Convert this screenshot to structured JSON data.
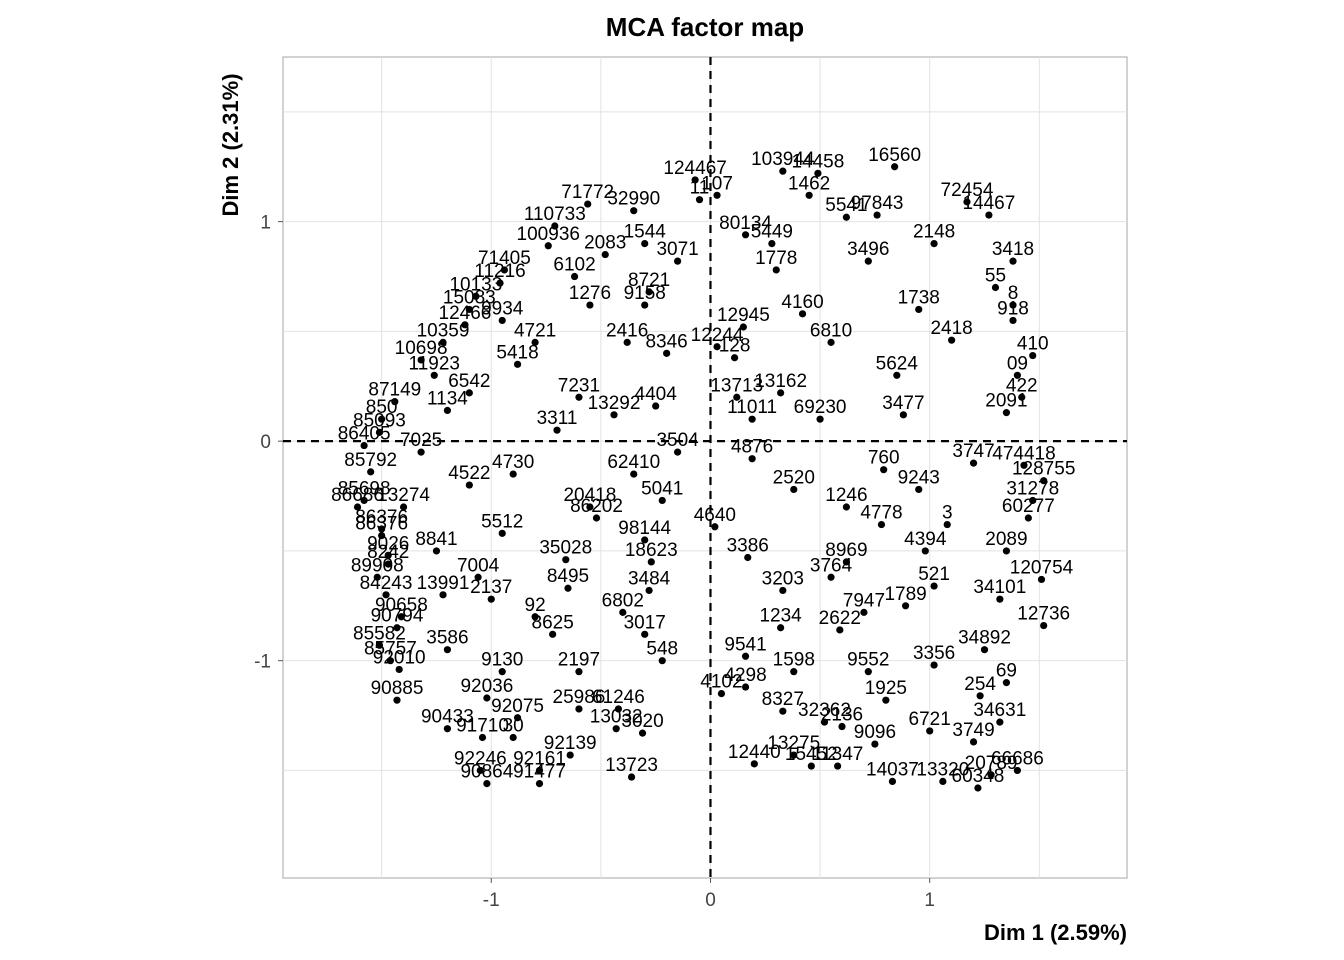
{
  "chart_data": {
    "type": "scatter",
    "title": "MCA factor map",
    "xlabel": "Dim 1 (2.59%)",
    "ylabel": "Dim 2 (2.31%)",
    "xlim": [
      -1.95,
      1.9
    ],
    "ylim": [
      -1.99,
      1.75
    ],
    "x_ticks": [
      -1,
      0,
      1
    ],
    "y_ticks": [
      -1,
      0,
      1
    ],
    "x_tick_labels": [
      "-1",
      "0",
      "1"
    ],
    "y_tick_labels": [
      "-1",
      "0",
      "1"
    ],
    "grid": true,
    "reference_lines": {
      "x": 0,
      "y": 0,
      "style": "dashed"
    },
    "point_color": "#000000",
    "points": [
      {
        "x": -0.07,
        "y": 1.19,
        "label": "124467"
      },
      {
        "x": -0.56,
        "y": 1.08,
        "label": "71772"
      },
      {
        "x": -0.35,
        "y": 1.05,
        "label": "32990"
      },
      {
        "x": 0.33,
        "y": 1.23,
        "label": "103944"
      },
      {
        "x": 0.49,
        "y": 1.22,
        "label": "14458"
      },
      {
        "x": 0.84,
        "y": 1.25,
        "label": "16560"
      },
      {
        "x": 0.03,
        "y": 1.12,
        "label": "107"
      },
      {
        "x": 1.17,
        "y": 1.09,
        "label": "72454"
      },
      {
        "x": 0.76,
        "y": 1.03,
        "label": "97843"
      },
      {
        "x": 1.27,
        "y": 1.03,
        "label": "14467"
      },
      {
        "x": -0.71,
        "y": 0.98,
        "label": "110733"
      },
      {
        "x": -0.74,
        "y": 0.89,
        "label": "100936"
      },
      {
        "x": 0.16,
        "y": 0.94,
        "label": "80134"
      },
      {
        "x": -0.94,
        "y": 0.78,
        "label": "71405"
      },
      {
        "x": -0.96,
        "y": 0.72,
        "label": "11216"
      },
      {
        "x": -1.07,
        "y": 0.66,
        "label": "10133"
      },
      {
        "x": -1.1,
        "y": 0.6,
        "label": "15083"
      },
      {
        "x": 1.38,
        "y": 0.82,
        "label": "3418"
      },
      {
        "x": 1.3,
        "y": 0.7,
        "label": "55"
      },
      {
        "x": 1.38,
        "y": 0.62,
        "label": "8"
      },
      {
        "x": 1.38,
        "y": 0.55,
        "label": "918"
      },
      {
        "x": -1.12,
        "y": 0.53,
        "label": "12466"
      },
      {
        "x": -1.22,
        "y": 0.45,
        "label": "10359"
      },
      {
        "x": -1.32,
        "y": 0.37,
        "label": "10698"
      },
      {
        "x": -1.26,
        "y": 0.3,
        "label": "11923"
      },
      {
        "x": -1.44,
        "y": 0.18,
        "label": "87149"
      },
      {
        "x": -1.5,
        "y": 0.1,
        "label": "850"
      },
      {
        "x": -1.51,
        "y": 0.04,
        "label": "85093"
      },
      {
        "x": 0.03,
        "y": 0.43,
        "label": "12244"
      },
      {
        "x": 0.11,
        "y": 0.38,
        "label": "128"
      },
      {
        "x": 1.47,
        "y": 0.39,
        "label": "410"
      },
      {
        "x": 1.4,
        "y": 0.3,
        "label": "09"
      },
      {
        "x": 1.42,
        "y": 0.2,
        "label": "422"
      },
      {
        "x": 1.35,
        "y": 0.13,
        "label": "2091"
      },
      {
        "x": 0.12,
        "y": 0.2,
        "label": "13713"
      },
      {
        "x": 0.19,
        "y": 0.1,
        "label": "11011"
      },
      {
        "x": 0.5,
        "y": 0.1,
        "label": "69230"
      },
      {
        "x": -1.58,
        "y": -0.02,
        "label": "86405"
      },
      {
        "x": -1.55,
        "y": -0.14,
        "label": "85792"
      },
      {
        "x": -1.58,
        "y": -0.27,
        "label": "85698"
      },
      {
        "x": -1.61,
        "y": -0.3,
        "label": "86686"
      },
      {
        "x": -1.4,
        "y": -0.3,
        "label": "13274"
      },
      {
        "x": -1.5,
        "y": -0.4,
        "label": "86376"
      },
      {
        "x": -1.5,
        "y": -0.43,
        "label": "86376"
      },
      {
        "x": -1.47,
        "y": -0.52,
        "label": "9026"
      },
      {
        "x": -1.47,
        "y": -0.56,
        "label": "8242"
      },
      {
        "x": -1.52,
        "y": -0.62,
        "label": "89908"
      },
      {
        "x": -1.48,
        "y": -0.7,
        "label": "84243"
      },
      {
        "x": -1.22,
        "y": -0.7,
        "label": "13991"
      },
      {
        "x": -1.41,
        "y": -0.8,
        "label": "90658"
      },
      {
        "x": -1.43,
        "y": -0.85,
        "label": "90794"
      },
      {
        "x": -1.51,
        "y": -0.93,
        "label": "85582"
      },
      {
        "x": -1.46,
        "y": -1.0,
        "label": "85757"
      },
      {
        "x": -1.42,
        "y": -1.04,
        "label": "92010"
      },
      {
        "x": -1.43,
        "y": -1.18,
        "label": "90885"
      },
      {
        "x": -1.02,
        "y": -1.17,
        "label": "92036"
      },
      {
        "x": -1.2,
        "y": -1.31,
        "label": "90433"
      },
      {
        "x": -1.04,
        "y": -1.35,
        "label": "91710"
      },
      {
        "x": -0.9,
        "y": -1.35,
        "label": "30"
      },
      {
        "x": -0.88,
        "y": -1.26,
        "label": "92075"
      },
      {
        "x": -1.05,
        "y": -1.5,
        "label": "92246"
      },
      {
        "x": -0.78,
        "y": -1.5,
        "label": "92161"
      },
      {
        "x": -0.64,
        "y": -1.43,
        "label": "92139"
      },
      {
        "x": -1.02,
        "y": -1.56,
        "label": "90864"
      },
      {
        "x": -0.78,
        "y": -1.56,
        "label": "91477"
      },
      {
        "x": -0.6,
        "y": -1.22,
        "label": "25986"
      },
      {
        "x": -0.42,
        "y": -1.22,
        "label": "61246"
      },
      {
        "x": -0.43,
        "y": -1.31,
        "label": "13032"
      },
      {
        "x": -0.31,
        "y": -1.33,
        "label": "3020"
      },
      {
        "x": -0.36,
        "y": -1.53,
        "label": "13723"
      },
      {
        "x": -0.27,
        "y": -0.55,
        "label": "18623"
      },
      {
        "x": 0.17,
        "y": -0.53,
        "label": "3386"
      },
      {
        "x": 0.02,
        "y": -0.39,
        "label": "4640"
      },
      {
        "x": -0.3,
        "y": -0.45,
        "label": "98144"
      },
      {
        "x": 0.19,
        "y": -0.08,
        "label": "4876"
      },
      {
        "x": 0.79,
        "y": -0.13,
        "label": "760"
      },
      {
        "x": 1.43,
        "y": -0.11,
        "label": "474418"
      },
      {
        "x": 1.52,
        "y": -0.18,
        "label": "128755"
      },
      {
        "x": 1.47,
        "y": -0.27,
        "label": "31278"
      },
      {
        "x": 1.45,
        "y": -0.35,
        "label": "60277"
      },
      {
        "x": 1.08,
        "y": -0.38,
        "label": "3"
      },
      {
        "x": 0.78,
        "y": -0.38,
        "label": "4778"
      },
      {
        "x": 1.35,
        "y": -0.5,
        "label": "2089"
      },
      {
        "x": 1.51,
        "y": -0.63,
        "label": "120754"
      },
      {
        "x": 1.32,
        "y": -0.72,
        "label": "34101"
      },
      {
        "x": 1.52,
        "y": -0.84,
        "label": "12736"
      },
      {
        "x": 1.25,
        "y": -0.95,
        "label": "34892"
      },
      {
        "x": 1.35,
        "y": -1.1,
        "label": "69"
      },
      {
        "x": 1.23,
        "y": -1.16,
        "label": "254"
      },
      {
        "x": 1.32,
        "y": -1.28,
        "label": "34631"
      },
      {
        "x": 1.2,
        "y": -1.37,
        "label": "3749"
      },
      {
        "x": 1.4,
        "y": -1.5,
        "label": "66686"
      },
      {
        "x": 1.28,
        "y": -1.52,
        "label": "20789"
      },
      {
        "x": 1.22,
        "y": -1.58,
        "label": "60348"
      },
      {
        "x": 1.06,
        "y": -1.55,
        "label": "13320"
      },
      {
        "x": 0.83,
        "y": -1.55,
        "label": "14037"
      },
      {
        "x": 0.58,
        "y": -1.48,
        "label": "11347"
      },
      {
        "x": 0.38,
        "y": -1.43,
        "label": "13275"
      },
      {
        "x": 0.46,
        "y": -1.48,
        "label": "15452"
      },
      {
        "x": 0.2,
        "y": -1.47,
        "label": "12440"
      },
      {
        "x": 0.52,
        "y": -1.28,
        "label": "32362"
      },
      {
        "x": 0.33,
        "y": -1.23,
        "label": "8327"
      },
      {
        "x": 0.16,
        "y": -1.12,
        "label": "4298"
      },
      {
        "x": 0.16,
        "y": -0.98,
        "label": "9541"
      },
      {
        "x": 0.33,
        "y": -0.68,
        "label": "3203"
      },
      {
        "x": 0.59,
        "y": -0.86,
        "label": "2622"
      },
      {
        "x": 0.55,
        "y": -0.62,
        "label": "3764"
      },
      {
        "x": 0.89,
        "y": -0.75,
        "label": "1789"
      },
      {
        "x": -0.05,
        "y": 1.1,
        "label": "11"
      },
      {
        "x": -0.15,
        "y": -0.05,
        "label": "3504"
      },
      {
        "x": -0.8,
        "y": -0.8,
        "label": "92"
      },
      {
        "x": -0.55,
        "y": -0.3,
        "label": "20418"
      },
      {
        "x": -0.28,
        "y": 0.68,
        "label": "8721"
      },
      {
        "x": -0.38,
        "y": 0.45,
        "label": "2416"
      },
      {
        "x": -0.25,
        "y": 0.16,
        "label": "4404"
      },
      {
        "x": -0.44,
        "y": 0.12,
        "label": "13292"
      },
      {
        "x": -0.6,
        "y": 0.2,
        "label": "7231"
      },
      {
        "x": -0.88,
        "y": 0.35,
        "label": "5418"
      },
      {
        "x": -1.1,
        "y": 0.22,
        "label": "6542"
      },
      {
        "x": -1.2,
        "y": 0.14,
        "label": "1134"
      },
      {
        "x": -0.9,
        "y": -0.15,
        "label": "4730"
      },
      {
        "x": -0.35,
        "y": -0.15,
        "label": "62410"
      },
      {
        "x": -0.22,
        "y": -0.27,
        "label": "5041"
      },
      {
        "x": -0.52,
        "y": -0.35,
        "label": "86202"
      },
      {
        "x": -0.95,
        "y": -0.42,
        "label": "5512"
      },
      {
        "x": -0.66,
        "y": -0.54,
        "label": "35028"
      },
      {
        "x": -1.06,
        "y": -0.62,
        "label": "7004"
      },
      {
        "x": -0.65,
        "y": -0.67,
        "label": "8495"
      },
      {
        "x": -0.28,
        "y": -0.68,
        "label": "3484"
      },
      {
        "x": -0.4,
        "y": -0.78,
        "label": "6802"
      },
      {
        "x": -0.3,
        "y": -0.88,
        "label": "3017"
      },
      {
        "x": -0.72,
        "y": -0.88,
        "label": "8625"
      },
      {
        "x": -0.22,
        "y": -1.0,
        "label": "548"
      },
      {
        "x": -0.6,
        "y": -1.05,
        "label": "2197"
      },
      {
        "x": 0.32,
        "y": -0.85,
        "label": "1234"
      },
      {
        "x": 0.7,
        "y": -0.78,
        "label": "7947"
      },
      {
        "x": 1.02,
        "y": -0.66,
        "label": "521"
      },
      {
        "x": 0.62,
        "y": -0.55,
        "label": "8969"
      },
      {
        "x": 0.98,
        "y": -0.5,
        "label": "4394"
      },
      {
        "x": 0.62,
        "y": -0.3,
        "label": "1246"
      },
      {
        "x": 0.38,
        "y": -0.22,
        "label": "2520"
      },
      {
        "x": 0.95,
        "y": -0.22,
        "label": "9243"
      },
      {
        "x": 1.2,
        "y": -0.1,
        "label": "3747"
      },
      {
        "x": 0.85,
        "y": 0.3,
        "label": "5624"
      },
      {
        "x": 0.55,
        "y": 0.45,
        "label": "6810"
      },
      {
        "x": 1.1,
        "y": 0.46,
        "label": "2418"
      },
      {
        "x": 0.42,
        "y": 0.58,
        "label": "4160"
      },
      {
        "x": 0.95,
        "y": 0.6,
        "label": "1738"
      },
      {
        "x": 0.3,
        "y": 0.78,
        "label": "1778"
      },
      {
        "x": 0.72,
        "y": 0.82,
        "label": "3496"
      },
      {
        "x": 1.02,
        "y": 0.9,
        "label": "2148"
      },
      {
        "x": 0.62,
        "y": 1.02,
        "label": "5541"
      },
      {
        "x": 0.45,
        "y": 1.12,
        "label": "1462"
      },
      {
        "x": 0.28,
        "y": 0.9,
        "label": "5449"
      },
      {
        "x": 0.15,
        "y": 0.52,
        "label": "12945"
      },
      {
        "x": 0.32,
        "y": 0.22,
        "label": "13162"
      },
      {
        "x": 0.88,
        "y": 0.12,
        "label": "3477"
      },
      {
        "x": 0.72,
        "y": -1.05,
        "label": "9552"
      },
      {
        "x": 1.02,
        "y": -1.02,
        "label": "3356"
      },
      {
        "x": 0.8,
        "y": -1.18,
        "label": "1925"
      },
      {
        "x": 1.0,
        "y": -1.32,
        "label": "6721"
      },
      {
        "x": 0.75,
        "y": -1.38,
        "label": "9096"
      },
      {
        "x": 0.6,
        "y": -1.3,
        "label": "2136"
      },
      {
        "x": 0.38,
        "y": -1.05,
        "label": "1598"
      },
      {
        "x": 0.05,
        "y": -1.15,
        "label": "4102"
      },
      {
        "x": -0.95,
        "y": -1.05,
        "label": "9130"
      },
      {
        "x": -1.2,
        "y": -0.95,
        "label": "3586"
      },
      {
        "x": -1.0,
        "y": -0.72,
        "label": "2137"
      },
      {
        "x": -1.25,
        "y": -0.5,
        "label": "8841"
      },
      {
        "x": -1.1,
        "y": -0.2,
        "label": "4522"
      },
      {
        "x": -1.32,
        "y": -0.05,
        "label": "7025"
      },
      {
        "x": -0.7,
        "y": 0.05,
        "label": "3311"
      },
      {
        "x": -0.95,
        "y": 0.55,
        "label": "9934"
      },
      {
        "x": -0.55,
        "y": 0.62,
        "label": "1276"
      },
      {
        "x": -0.48,
        "y": 0.85,
        "label": "2083"
      },
      {
        "x": -0.62,
        "y": 0.75,
        "label": "6102"
      },
      {
        "x": -0.3,
        "y": 0.9,
        "label": "1544"
      },
      {
        "x": -0.15,
        "y": 0.82,
        "label": "3071"
      },
      {
        "x": -0.2,
        "y": 0.4,
        "label": "8346"
      },
      {
        "x": -0.8,
        "y": 0.45,
        "label": "4721"
      },
      {
        "x": -0.3,
        "y": 0.62,
        "label": "9158"
      }
    ]
  }
}
